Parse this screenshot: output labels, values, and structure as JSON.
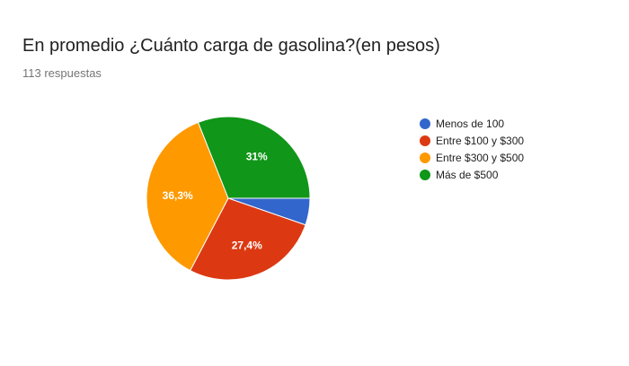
{
  "header": {
    "title": "En promedio ¿Cuánto carga de gasolina?(en pesos)",
    "responses": "113 respuestas"
  },
  "chart_data": {
    "type": "pie",
    "title": "En promedio ¿Cuánto carga de gasolina?(en pesos)",
    "subtitle": "113 respuestas",
    "legend_position": "right",
    "slices": [
      {
        "label": "Menos de 100",
        "value": 5.3,
        "display": "",
        "color": "#3366cc"
      },
      {
        "label": "Entre $100 y $300",
        "value": 27.4,
        "display": "27,4%",
        "color": "#dc3912"
      },
      {
        "label": "Entre $300 y $500",
        "value": 36.3,
        "display": "36,3%",
        "color": "#ff9900"
      },
      {
        "label": "Más de $500",
        "value": 31.0,
        "display": "31%",
        "color": "#109618"
      }
    ]
  }
}
